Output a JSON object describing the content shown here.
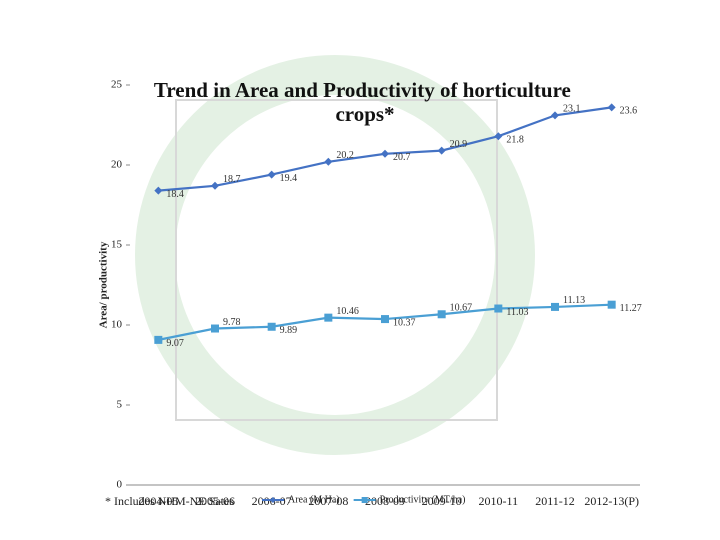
{
  "chart_data": {
    "type": "line",
    "title": "Trend in Area and Productivity of horticulture crops*",
    "y_label": "Area/ productivity",
    "footnote": "* Includes NHM-NE Sates",
    "categories": [
      "2004-05",
      "2005-06",
      "2006-07",
      "2007-08",
      "2008-09",
      "2009-10",
      "2010-11",
      "2011-12",
      "2012-13(P)"
    ],
    "series": [
      {
        "name": "Area (M Ha)",
        "color": "#4472c4",
        "marker": "diamond",
        "values": [
          18.4,
          18.7,
          19.4,
          20.2,
          20.7,
          20.9,
          21.8,
          23.1,
          23.6
        ]
      },
      {
        "name": "Productivity (MT/ha)",
        "color": "#4a9fd4",
        "marker": "square",
        "values": [
          9.07,
          9.78,
          9.89,
          10.46,
          10.37,
          10.67,
          11.03,
          11.13,
          11.27
        ]
      }
    ],
    "ylim": [
      0,
      25
    ],
    "yticks": [
      0,
      5,
      10,
      15,
      20,
      25
    ],
    "legend": "bottom",
    "grid": false
  }
}
